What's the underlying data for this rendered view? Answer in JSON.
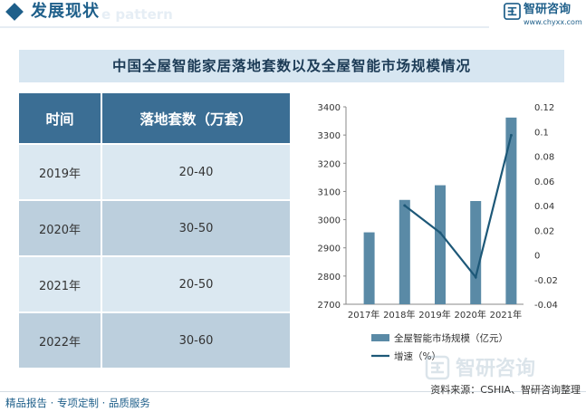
{
  "header": {
    "title": "发展现状",
    "watermark": "e pattern",
    "brand_name": "智研咨询",
    "brand_url": "www.chyxx.com",
    "accent_color": "#1e5f8a"
  },
  "page_title": "中国全屋智能家居落地套数以及全屋智能市场规模情况",
  "table": {
    "headers": [
      "时间",
      "落地套数（万套）"
    ],
    "rows": [
      [
        "2019年",
        "20-40"
      ],
      [
        "2020年",
        "30-50"
      ],
      [
        "2021年",
        "20-50"
      ],
      [
        "2022年",
        "30-60"
      ]
    ]
  },
  "chart_data": {
    "type": "bar+line",
    "categories": [
      "2017年",
      "2018年",
      "2019年",
      "2020年",
      "2021年"
    ],
    "series": [
      {
        "name": "全屋智能市场规模（亿元）",
        "kind": "bar",
        "axis": "left",
        "values": [
          2955,
          3070,
          3122,
          3066,
          3362
        ],
        "color": "#5a8aa6"
      },
      {
        "name": "增速（%）",
        "kind": "line",
        "axis": "right",
        "values": [
          null,
          0.04,
          0.018,
          -0.018,
          0.097
        ],
        "color": "#1d5878"
      }
    ],
    "y_left": {
      "min": 2700,
      "max": 3400,
      "ticks": [
        2700,
        2800,
        2900,
        3000,
        3100,
        3200,
        3300,
        3400
      ]
    },
    "y_right": {
      "min": -0.04,
      "max": 0.12,
      "ticks": [
        "-0.04",
        "-0.02",
        "0",
        "0.02",
        "0.04",
        "0.06",
        "0.08",
        "0.1",
        "0.12"
      ]
    },
    "legend_position": "bottom",
    "grid": false
  },
  "footer": {
    "left": "精品报告 · 专项定制 · 品质服务",
    "source": "资料来源：CSHIA、智研咨询整理",
    "watermark": "智研咨询"
  }
}
